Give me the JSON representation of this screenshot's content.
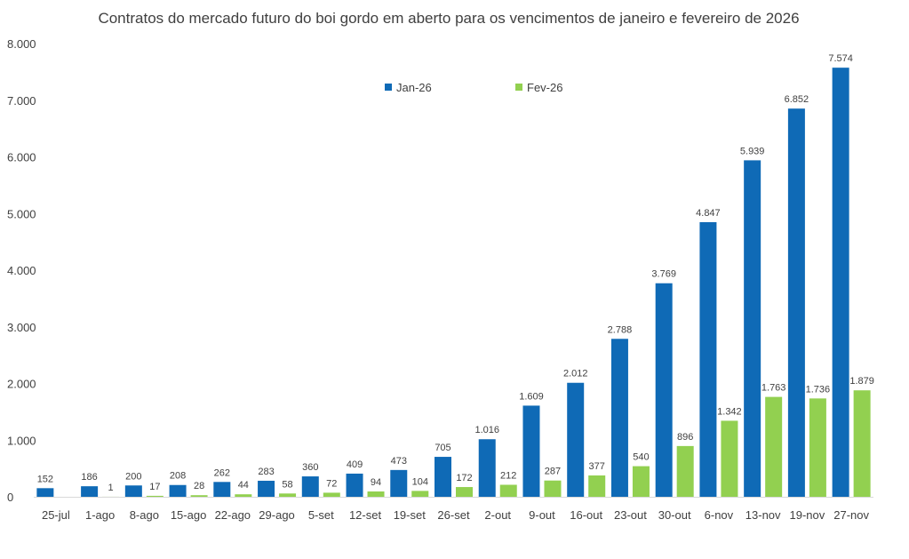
{
  "chart_data": {
    "type": "bar",
    "title": "Contratos do mercado futuro do boi gordo em aberto para os vencimentos de janeiro e fevereiro de 2026",
    "xlabel": "",
    "ylabel": "",
    "ylim": [
      0,
      8000
    ],
    "yticks": [
      "0",
      "1.000",
      "2.000",
      "3.000",
      "4.000",
      "5.000",
      "6.000",
      "7.000",
      "8.000"
    ],
    "grid": false,
    "legend_position": "top-center",
    "categories": [
      "25-jul",
      "1-ago",
      "8-ago",
      "15-ago",
      "22-ago",
      "29-ago",
      "5-set",
      "12-set",
      "19-set",
      "26-set",
      "2-out",
      "9-out",
      "16-out",
      "23-out",
      "30-out",
      "6-nov",
      "13-nov",
      "19-nov",
      "27-nov"
    ],
    "series": [
      {
        "name": "Jan-26",
        "color": "#0f6ab6",
        "values": [
          152,
          186,
          200,
          208,
          262,
          283,
          360,
          409,
          473,
          705,
          1016,
          1609,
          2012,
          2788,
          3769,
          4847,
          5939,
          6852,
          7574
        ],
        "labels": [
          "152",
          "186",
          "200",
          "208",
          "262",
          "283",
          "360",
          "409",
          "473",
          "705",
          "1.016",
          "1.609",
          "2.012",
          "2.788",
          "3.769",
          "4.847",
          "5.939",
          "6.852",
          "7.574"
        ]
      },
      {
        "name": "Fev-26",
        "color": "#92d050",
        "values": [
          null,
          1,
          17,
          28,
          44,
          58,
          72,
          94,
          104,
          172,
          212,
          287,
          377,
          540,
          896,
          1342,
          1763,
          1736,
          1879
        ],
        "labels": [
          "",
          "1",
          "17",
          "28",
          "44",
          "58",
          "72",
          "94",
          "104",
          "172",
          "212",
          "287",
          "377",
          "540",
          "896",
          "1.342",
          "1.763",
          "1.736",
          "1.879"
        ]
      }
    ]
  }
}
